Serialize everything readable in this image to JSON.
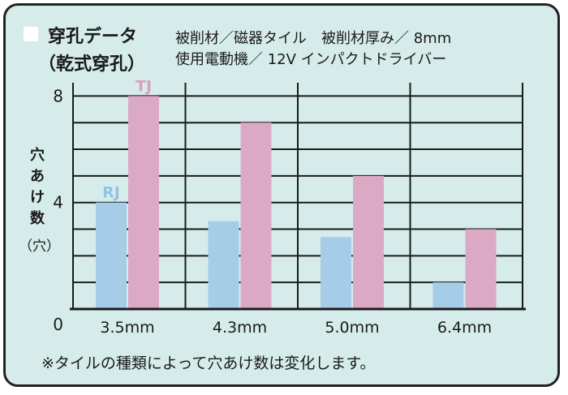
{
  "header": {
    "title": "穿孔データ",
    "subtitle": "（乾式穿孔）",
    "condition_1": "被削材／磁器タイル　被削材厚み／ 8mm",
    "condition_2": "使用電動機／ 12V インパクトドライバー"
  },
  "y_axis_label": [
    "穴",
    "あ",
    "け",
    "数",
    "（穴）"
  ],
  "footnote": "※タイルの種類によって穴あけ数は変化します。",
  "colors": {
    "panel": "#d6ecea",
    "RJ": "#a6cde8",
    "TJ": "#dca9c4",
    "RJ_label": "#8fc4e6",
    "TJ_label": "#dc9fbf"
  },
  "chart_data": {
    "type": "bar",
    "categories": [
      "3.5mm",
      "4.3mm",
      "5.0mm",
      "6.4mm"
    ],
    "series": [
      {
        "name": "RJ",
        "values": [
          4,
          3.3,
          2.7,
          1
        ]
      },
      {
        "name": "TJ",
        "values": [
          8,
          7,
          5,
          3
        ]
      }
    ],
    "ylim": [
      0,
      8.5
    ],
    "y_ticks": [
      "0",
      "4",
      "8"
    ],
    "grid": true
  }
}
